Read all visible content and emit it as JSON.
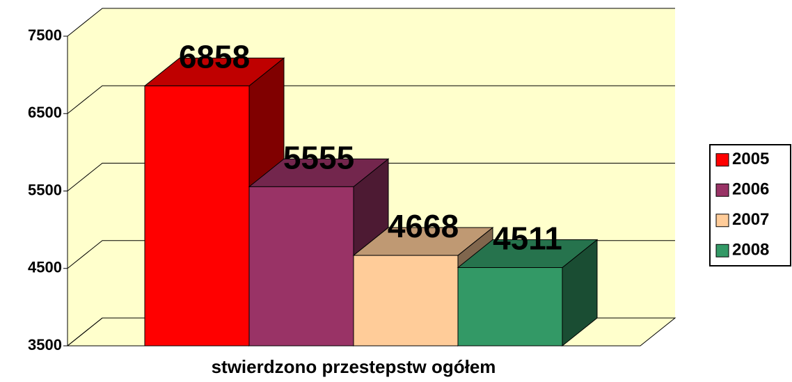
{
  "chart_data": {
    "type": "bar",
    "categories": [
      "stwierdzono przestepstw ogółem"
    ],
    "series": [
      {
        "name": "2005",
        "color": "#ff0000",
        "values": [
          6858
        ]
      },
      {
        "name": "2006",
        "color": "#993366",
        "values": [
          5555
        ]
      },
      {
        "name": "2007",
        "color": "#ffcc99",
        "values": [
          4668
        ]
      },
      {
        "name": "2008",
        "color": "#339966",
        "values": [
          4511
        ]
      }
    ],
    "ylim": [
      3500,
      7500
    ],
    "yticks": [
      3500,
      4500,
      5500,
      6500,
      7500
    ],
    "grid": true,
    "legend": "right"
  }
}
